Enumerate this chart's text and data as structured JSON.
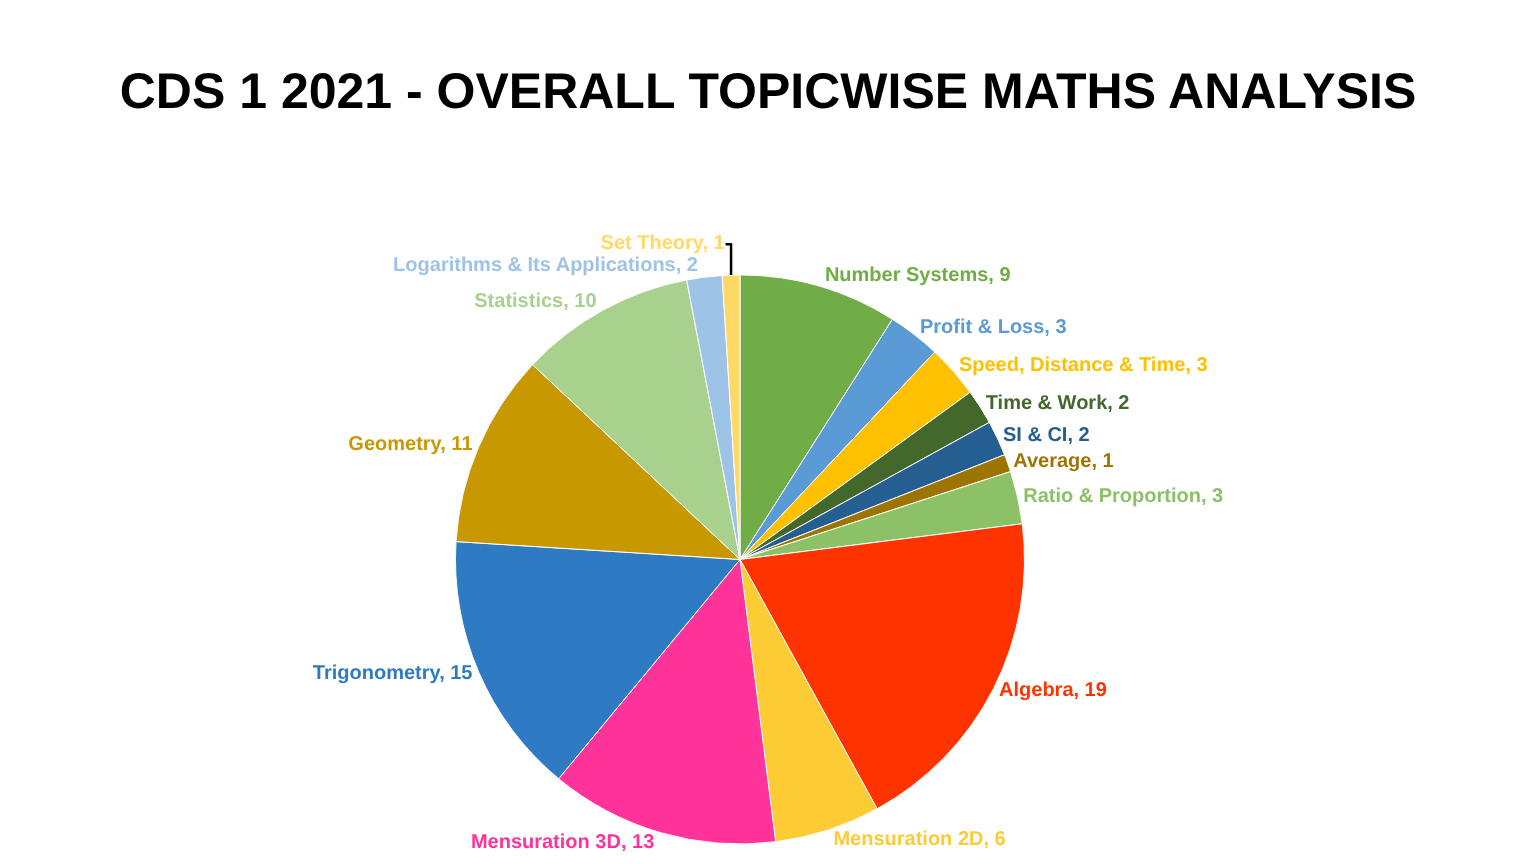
{
  "chart_data": {
    "type": "pie",
    "title": "CDS 1 2021 - OVERALL TOPICWISE MATHS ANALYSIS",
    "categories": [
      "Number Systems, 9",
      "Profit & Loss, 3",
      "Speed, Distance & Time, 3",
      "Time & Work, 2",
      "SI & CI, 2",
      "Average, 1",
      "Ratio & Proportion, 3",
      "Algebra, 19",
      "Mensuration 2D, 6",
      "Mensuration 3D, 13",
      "Trigonometry, 15",
      "Geometry, 11",
      "Statistics, 10",
      "Logarithms & Its Applications, 2",
      "Set Theory, 1"
    ],
    "values": [
      9,
      3,
      3,
      2,
      2,
      1,
      3,
      19,
      6,
      13,
      15,
      11,
      10,
      2,
      1
    ],
    "colors": [
      "#70ad47",
      "#5b9bd5",
      "#ffc000",
      "#43682b",
      "#255e91",
      "#9e7400",
      "#8cc168",
      "#ff3300",
      "#fdcb33",
      "#ff3399",
      "#2e7bc4",
      "#c89800",
      "#a9d18e",
      "#9dc3e6",
      "#ffd966"
    ]
  }
}
